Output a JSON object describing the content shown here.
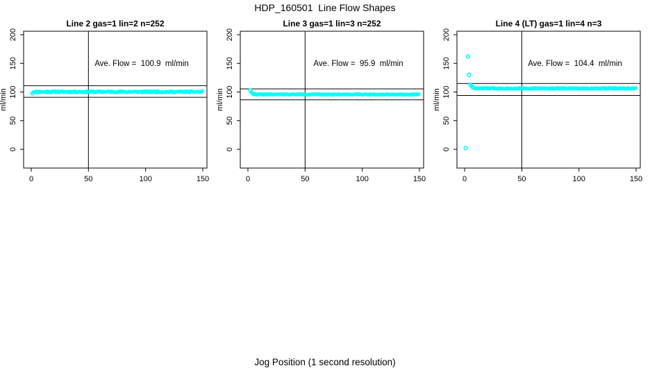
{
  "title": "HDP_160501  Line Flow Shapes",
  "xlabel": "Jog Position (1 second resolution)",
  "ylabel": "ml/min",
  "colors": {
    "points": "#00ffff",
    "axis": "#000000",
    "background": "#ffffff"
  },
  "chart_data": [
    {
      "type": "scatter",
      "title": "Line 2 gas=1 lin=2 n=252",
      "annotation": "Ave. Flow =  100.9  ml/min",
      "ave_flow_ml_min": 100.9,
      "n": 252,
      "ylabel": "ml/min",
      "x_ticks": [
        0,
        50,
        100,
        150
      ],
      "y_ticks": [
        0,
        50,
        100,
        150,
        200
      ],
      "xlim": [
        -10,
        154
      ],
      "ylim": [
        -33,
        206
      ],
      "vline_x": 50,
      "hlines": [
        111.0,
        90.8
      ],
      "points": {
        "lead": [
          [
            1,
            97.5
          ]
        ],
        "band": {
          "x_start": 1.5,
          "x_end": 150,
          "level": 100.3,
          "jitter": 1.4,
          "seed": 11
        },
        "outliers": []
      }
    },
    {
      "type": "scatter",
      "title": "Line 3 gas=1 lin=3 n=252",
      "annotation": "Ave. Flow =  95.9  ml/min",
      "ave_flow_ml_min": 95.9,
      "n": 252,
      "ylabel": "ml/min",
      "x_ticks": [
        0,
        50,
        100,
        150
      ],
      "y_ticks": [
        0,
        50,
        100,
        150,
        200
      ],
      "xlim": [
        -10,
        154
      ],
      "ylim": [
        -33,
        206
      ],
      "vline_x": 50,
      "hlines": [
        105.5,
        86.3
      ],
      "points": {
        "lead": [
          [
            2,
            103
          ],
          [
            3,
            99.5
          ],
          [
            4,
            97.5
          ],
          [
            5,
            96.5
          ]
        ],
        "band": {
          "x_start": 5.5,
          "x_end": 150,
          "level": 95.8,
          "jitter": 0.9,
          "seed": 22
        },
        "outliers": []
      }
    },
    {
      "type": "scatter",
      "title": "Line 4 (LT) gas=1 lin=4 n=3",
      "annotation": "Ave. Flow =  104.4  ml/min",
      "ave_flow_ml_min": 104.4,
      "n": 3,
      "ylabel": "ml/min",
      "x_ticks": [
        0,
        50,
        100,
        150
      ],
      "y_ticks": [
        0,
        50,
        100,
        150,
        200
      ],
      "xlim": [
        -10,
        154
      ],
      "ylim": [
        -33,
        206
      ],
      "vline_x": 50,
      "hlines": [
        114.8,
        94.0
      ],
      "points": {
        "lead": [
          [
            5,
            113
          ],
          [
            6,
            110.5
          ],
          [
            7,
            108.5
          ],
          [
            8,
            107.5
          ]
        ],
        "band": {
          "x_start": 9,
          "x_end": 150,
          "level": 106.3,
          "jitter": 1.2,
          "seed": 33
        },
        "outliers": [
          [
            3,
            162
          ],
          [
            4,
            130
          ],
          [
            1,
            2
          ]
        ]
      }
    }
  ]
}
